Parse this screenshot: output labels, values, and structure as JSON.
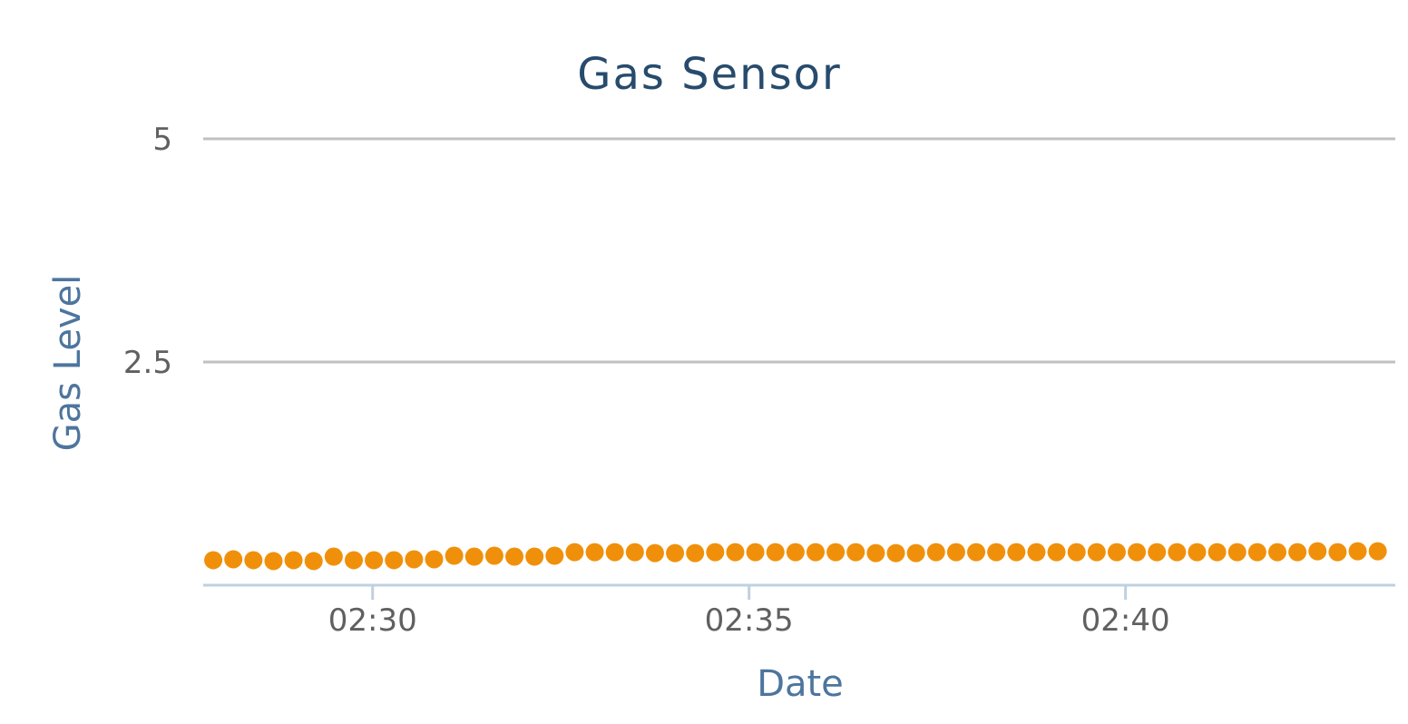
{
  "chart_data": {
    "type": "scatter",
    "title": "Gas Sensor",
    "xlabel": "Date",
    "ylabel": "Gas Level",
    "x_unit": "time (HH:MM)",
    "xlim": [
      "02:27:45",
      "02:43:35"
    ],
    "ylim": [
      0,
      5
    ],
    "grid": true,
    "legend": "none",
    "x_ticks": [
      "02:30",
      "02:35",
      "02:40"
    ],
    "y_ticks": [
      2.5,
      5
    ],
    "y_tick_labels": [
      "2.5",
      "5"
    ],
    "colors": {
      "series": "#f0900a",
      "title": "#274b6d",
      "axis_title": "#4d759e"
    },
    "series": [
      {
        "x": [
          "02:27:53",
          "02:28:09",
          "02:28:25",
          "02:28:41",
          "02:28:57",
          "02:29:13",
          "02:29:29",
          "02:29:45",
          "02:30:01",
          "02:30:17",
          "02:30:33",
          "02:30:49",
          "02:31:05",
          "02:31:21",
          "02:31:37",
          "02:31:53",
          "02:32:09",
          "02:32:25",
          "02:32:41",
          "02:32:57",
          "02:33:13",
          "02:33:29",
          "02:33:45",
          "02:34:01",
          "02:34:17",
          "02:34:33",
          "02:34:49",
          "02:35:05",
          "02:35:21",
          "02:35:37",
          "02:35:53",
          "02:36:09",
          "02:36:25",
          "02:36:41",
          "02:36:57",
          "02:37:13",
          "02:37:29",
          "02:37:45",
          "02:38:01",
          "02:38:17",
          "02:38:33",
          "02:38:49",
          "02:39:05",
          "02:39:21",
          "02:39:37",
          "02:39:53",
          "02:40:09",
          "02:40:25",
          "02:40:41",
          "02:40:57",
          "02:41:13",
          "02:41:29",
          "02:41:45",
          "02:42:01",
          "02:42:17",
          "02:42:33",
          "02:42:49",
          "02:43:05",
          "02:43:21"
        ],
        "values": [
          0.28,
          0.29,
          0.28,
          0.27,
          0.28,
          0.27,
          0.32,
          0.28,
          0.28,
          0.28,
          0.29,
          0.29,
          0.33,
          0.32,
          0.33,
          0.32,
          0.32,
          0.33,
          0.37,
          0.37,
          0.37,
          0.37,
          0.36,
          0.36,
          0.36,
          0.37,
          0.37,
          0.37,
          0.37,
          0.37,
          0.37,
          0.37,
          0.37,
          0.36,
          0.36,
          0.36,
          0.37,
          0.37,
          0.37,
          0.37,
          0.37,
          0.37,
          0.37,
          0.37,
          0.37,
          0.37,
          0.37,
          0.37,
          0.37,
          0.37,
          0.37,
          0.37,
          0.37,
          0.37,
          0.37,
          0.38,
          0.37,
          0.38,
          0.38
        ]
      }
    ]
  }
}
